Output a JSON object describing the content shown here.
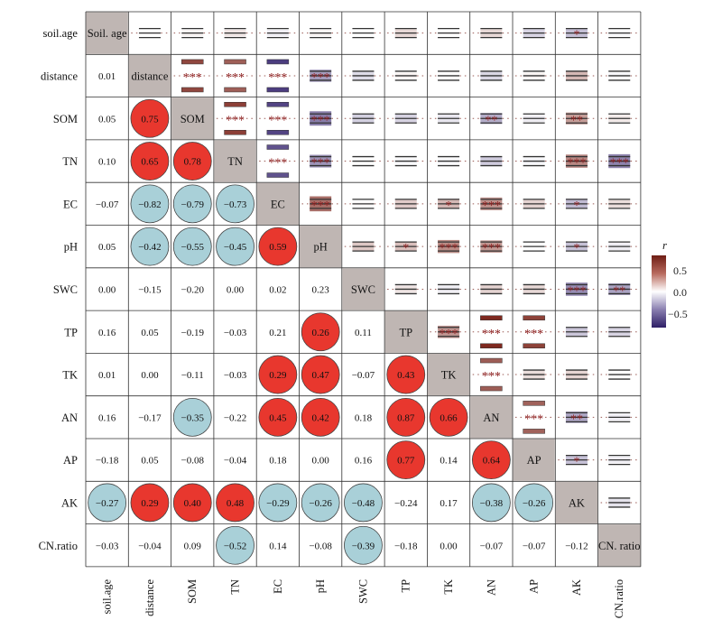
{
  "chart_data": {
    "type": "heatmap",
    "variables": [
      "soil.age",
      "distance",
      "SOM",
      "TN",
      "EC",
      "pH",
      "SWC",
      "TP",
      "TK",
      "AN",
      "AP",
      "AK",
      "CN.ratio"
    ],
    "diagonal_labels": [
      "Soil. age",
      "distance",
      "SOM",
      "TN",
      "EC",
      "pH",
      "SWC",
      "TP",
      "TK",
      "AN",
      "AP",
      "AK",
      "CN. ratio"
    ],
    "lower_values": [
      [],
      [
        0.01
      ],
      [
        0.05,
        0.75
      ],
      [
        0.1,
        0.65,
        0.78
      ],
      [
        -0.07,
        -0.82,
        -0.79,
        -0.73
      ],
      [
        0.05,
        -0.42,
        -0.55,
        -0.45,
        0.59
      ],
      [
        0.0,
        -0.15,
        -0.2,
        0.0,
        0.02,
        0.23
      ],
      [
        0.16,
        0.05,
        -0.19,
        -0.03,
        0.21,
        0.26,
        0.11
      ],
      [
        0.01,
        0.0,
        -0.11,
        -0.03,
        0.29,
        0.47,
        -0.07,
        0.43
      ],
      [
        0.16,
        -0.17,
        -0.35,
        -0.22,
        0.45,
        0.42,
        0.18,
        0.87,
        0.66
      ],
      [
        -0.18,
        0.05,
        -0.08,
        -0.04,
        0.18,
        0.0,
        0.16,
        0.77,
        0.14,
        0.64
      ],
      [
        -0.27,
        0.29,
        0.4,
        0.48,
        -0.29,
        -0.26,
        -0.48,
        -0.24,
        0.17,
        -0.38,
        -0.26
      ],
      [
        -0.03,
        -0.04,
        0.09,
        -0.52,
        0.14,
        -0.08,
        -0.39,
        -0.18,
        0.0,
        -0.07,
        -0.07,
        -0.12
      ]
    ],
    "significant_circles": [
      [
        2,
        1
      ],
      [
        3,
        1
      ],
      [
        3,
        2
      ],
      [
        4,
        1
      ],
      [
        4,
        2
      ],
      [
        4,
        3
      ],
      [
        5,
        1
      ],
      [
        5,
        2
      ],
      [
        5,
        3
      ],
      [
        5,
        4
      ],
      [
        7,
        5
      ],
      [
        8,
        4
      ],
      [
        8,
        5
      ],
      [
        8,
        7
      ],
      [
        9,
        2
      ],
      [
        9,
        4
      ],
      [
        9,
        5
      ],
      [
        9,
        7
      ],
      [
        9,
        8
      ],
      [
        10,
        7
      ],
      [
        10,
        9
      ],
      [
        11,
        0
      ],
      [
        11,
        1
      ],
      [
        11,
        2
      ],
      [
        11,
        3
      ],
      [
        11,
        4
      ],
      [
        11,
        5
      ],
      [
        11,
        6
      ],
      [
        11,
        9
      ],
      [
        11,
        10
      ],
      [
        12,
        3
      ],
      [
        12,
        6
      ]
    ],
    "upper_stars": {
      "1-2": "***",
      "1-3": "***",
      "1-4": "***",
      "1-5": "***",
      "2-3": "***",
      "2-4": "***",
      "2-5": "***",
      "2-9": "**",
      "2-11": "**",
      "3-4": "***",
      "3-5": "***",
      "3-11": "***",
      "3-12": "***",
      "4-5": "***",
      "4-8": "*",
      "4-9": "***",
      "4-11": "*",
      "5-7": "*",
      "5-8": "***",
      "5-9": "***",
      "5-11": "*",
      "6-11": "***",
      "6-12": "**",
      "7-8": "***",
      "7-9": "***",
      "7-10": "***",
      "8-9": "***",
      "9-10": "***",
      "9-11": "**",
      "10-11": "*",
      "0-11": "*"
    },
    "legend": {
      "title": "r",
      "ticks": [
        "0.5",
        "0.0",
        "−0.5"
      ],
      "tick_values": [
        0.5,
        0.0,
        -0.5
      ],
      "range": [
        -0.9,
        0.9
      ],
      "placement": "right"
    },
    "colors": {
      "positive_circle": "#e8372e",
      "negative_circle": "#a9d0d8",
      "diagonal": "#bfb6b3",
      "high": "#7a2218",
      "mid": "#ffffff",
      "low": "#3b2a72",
      "star": "#8b1a1a",
      "grid": "#333333"
    }
  }
}
